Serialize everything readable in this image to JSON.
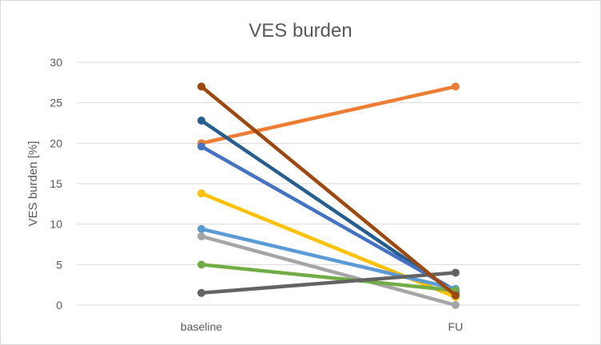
{
  "chart_data": {
    "type": "line",
    "title": "VES burden",
    "xlabel": "",
    "ylabel": "VES burden [%]",
    "categories": [
      "baseline",
      "FU"
    ],
    "ylim": [
      0,
      30
    ],
    "yticks": [
      0,
      5,
      10,
      15,
      20,
      25,
      30
    ],
    "grid": true,
    "legend": "none",
    "series": [
      {
        "values": [
          20,
          27
        ],
        "color": "#ed7d31"
      },
      {
        "values": [
          22.8,
          1.5
        ],
        "color": "#255e91"
      },
      {
        "values": [
          19.6,
          1.8
        ],
        "color": "#4472c4"
      },
      {
        "values": [
          13.8,
          1.0
        ],
        "color": "#ffc000"
      },
      {
        "values": [
          9.4,
          2.0
        ],
        "color": "#5b9bd5"
      },
      {
        "values": [
          8.5,
          0.0
        ],
        "color": "#a5a5a5"
      },
      {
        "values": [
          5.0,
          1.8
        ],
        "color": "#70ad47"
      },
      {
        "values": [
          1.5,
          4.0
        ],
        "color": "#636363"
      },
      {
        "values": [
          27,
          1.2
        ],
        "color": "#9e480e"
      }
    ]
  }
}
